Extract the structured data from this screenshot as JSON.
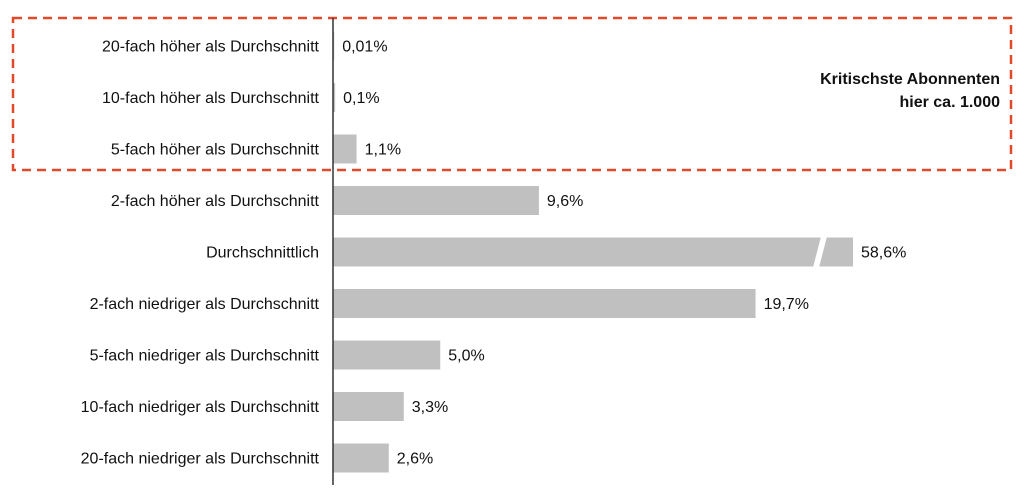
{
  "chart_data": {
    "type": "bar",
    "orientation": "horizontal",
    "categories": [
      "20-fach höher als Durchschnitt",
      "10-fach höher als Durchschnitt",
      "5-fach höher als Durchschnitt",
      "2-fach höher als Durchschnitt",
      "Durchschnittlich",
      "2-fach niedriger als Durchschnitt",
      "5-fach niedriger als Durchschnitt",
      "10-fach niedriger als Durchschnitt",
      "20-fach niedriger als Durchschnitt"
    ],
    "values": [
      0.01,
      0.1,
      1.1,
      9.6,
      58.6,
      19.7,
      5.0,
      3.3,
      2.6
    ],
    "value_labels": [
      "0,01%",
      "0,1%",
      "1,1%",
      "9,6%",
      "58,6%",
      "19,7%",
      "5,0%",
      "3,3%",
      "2,6%"
    ],
    "broken_axis_category": "Durchschnittlich",
    "bar_color": "#c0c0c0",
    "axis_color": "#333333",
    "highlight": {
      "range_categories": [
        0,
        2
      ],
      "border_color": "#e04a2a",
      "border_style": "dashed",
      "text_lines": [
        "Kritischste Abonnenten",
        "hier ca. 1.000"
      ]
    },
    "title": "",
    "xlabel": "",
    "ylabel": "",
    "grid": false,
    "legend": "none"
  }
}
